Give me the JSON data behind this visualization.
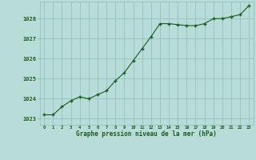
{
  "x": [
    0,
    1,
    2,
    3,
    4,
    5,
    6,
    7,
    8,
    9,
    10,
    11,
    12,
    13,
    14,
    15,
    16,
    17,
    18,
    19,
    20,
    21,
    22,
    23
  ],
  "y": [
    1023.2,
    1023.2,
    1023.6,
    1023.9,
    1024.1,
    1024.0,
    1024.2,
    1024.4,
    1024.9,
    1025.3,
    1025.9,
    1026.5,
    1027.1,
    1027.75,
    1027.75,
    1027.7,
    1027.65,
    1027.65,
    1027.75,
    1028.0,
    1028.0,
    1028.1,
    1028.2,
    1028.65
  ],
  "line_color": "#1a5c1a",
  "marker_color": "#1a5c1a",
  "bg_color": "#b8dcd8",
  "grid_color": "#90baba",
  "axis_label_color": "#1a5c1a",
  "ylabel_ticks": [
    1023,
    1024,
    1025,
    1026,
    1027,
    1028
  ],
  "xlabel": "Graphe pression niveau de la mer (hPa)",
  "ylim": [
    1022.7,
    1028.85
  ],
  "xlim": [
    -0.5,
    23.5
  ]
}
